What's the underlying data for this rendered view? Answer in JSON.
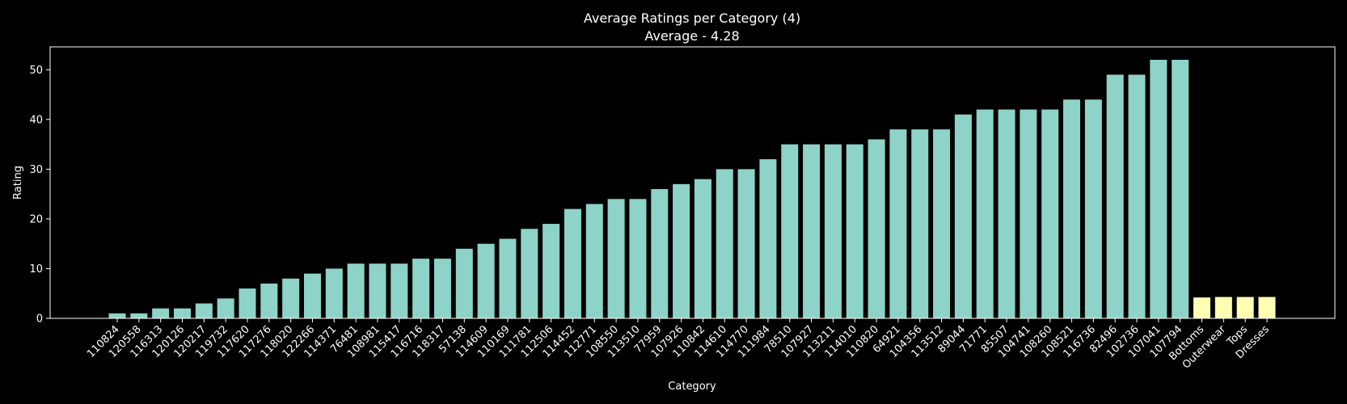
{
  "chart_data": {
    "type": "bar",
    "title": "Average Ratings per Category (4)",
    "subtitle": "Average - 4.28",
    "xlabel": "Category",
    "ylabel": "Rating",
    "ylim": [
      0,
      54.6
    ],
    "yticks": [
      0,
      10,
      20,
      30,
      40,
      50
    ],
    "grid": false,
    "categories": [
      "110824",
      "120558",
      "116313",
      "120126",
      "120217",
      "119732",
      "117620",
      "117276",
      "118020",
      "122266",
      "114371",
      "76481",
      "108981",
      "115417",
      "116716",
      "118317",
      "57138",
      "114609",
      "110169",
      "111781",
      "112506",
      "114452",
      "112771",
      "108550",
      "113510",
      "77959",
      "107926",
      "110842",
      "114610",
      "114770",
      "111984",
      "78510",
      "107927",
      "113211",
      "114010",
      "110820",
      "64921",
      "104356",
      "113512",
      "89044",
      "71771",
      "85507",
      "104741",
      "108260",
      "108521",
      "116736",
      "82496",
      "102736",
      "107041",
      "107794",
      "Bottoms",
      "Outerwear",
      "Tops",
      "Dresses"
    ],
    "values": [
      1,
      1,
      2,
      2,
      3,
      4,
      6,
      7,
      8,
      9,
      10,
      11,
      11,
      11,
      12,
      12,
      14,
      15,
      16,
      18,
      19,
      22,
      23,
      24,
      24,
      26,
      27,
      28,
      30,
      30,
      32,
      35,
      35,
      35,
      35,
      36,
      38,
      38,
      38,
      41,
      42,
      42,
      42,
      42,
      44,
      44,
      49,
      49,
      52,
      52,
      4.2,
      4.3,
      4.3,
      4.3
    ],
    "bar_colors": [
      "#8dd3c7",
      "#8dd3c7",
      "#8dd3c7",
      "#8dd3c7",
      "#8dd3c7",
      "#8dd3c7",
      "#8dd3c7",
      "#8dd3c7",
      "#8dd3c7",
      "#8dd3c7",
      "#8dd3c7",
      "#8dd3c7",
      "#8dd3c7",
      "#8dd3c7",
      "#8dd3c7",
      "#8dd3c7",
      "#8dd3c7",
      "#8dd3c7",
      "#8dd3c7",
      "#8dd3c7",
      "#8dd3c7",
      "#8dd3c7",
      "#8dd3c7",
      "#8dd3c7",
      "#8dd3c7",
      "#8dd3c7",
      "#8dd3c7",
      "#8dd3c7",
      "#8dd3c7",
      "#8dd3c7",
      "#8dd3c7",
      "#8dd3c7",
      "#8dd3c7",
      "#8dd3c7",
      "#8dd3c7",
      "#8dd3c7",
      "#8dd3c7",
      "#8dd3c7",
      "#8dd3c7",
      "#8dd3c7",
      "#8dd3c7",
      "#8dd3c7",
      "#8dd3c7",
      "#8dd3c7",
      "#8dd3c7",
      "#8dd3c7",
      "#8dd3c7",
      "#8dd3c7",
      "#8dd3c7",
      "#8dd3c7",
      "#ffffb3",
      "#ffffb3",
      "#ffffb3",
      "#ffffb3"
    ],
    "background": "#000000",
    "foreground": "#ffffff"
  }
}
